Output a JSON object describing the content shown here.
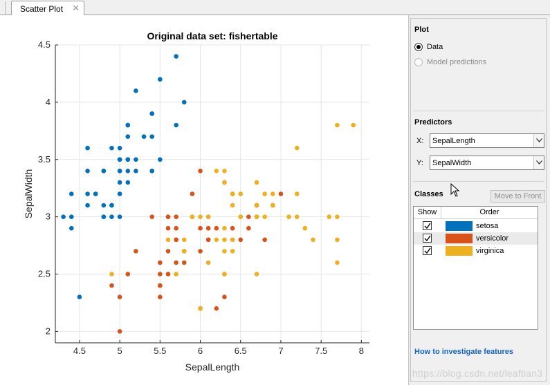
{
  "tabs": [
    {
      "label": "Scatter Plot",
      "close_glyph": "✕"
    }
  ],
  "panel": {
    "plot": {
      "title": "Plot",
      "options": [
        {
          "label": "Data",
          "selected": true,
          "enabled": true
        },
        {
          "label": "Model predictions",
          "selected": false,
          "enabled": false
        }
      ]
    },
    "predictors": {
      "title": "Predictors",
      "x_label": "X:",
      "x_value": "SepalLength",
      "y_label": "Y:",
      "y_value": "SepalWidth"
    },
    "classes": {
      "title": "Classes",
      "move_button": "Move to Front",
      "col_show": "Show",
      "col_order": "Order",
      "rows": [
        {
          "name": "setosa",
          "color": "#0072bd",
          "checked": true
        },
        {
          "name": "versicolor",
          "color": "#d95319",
          "checked": true
        },
        {
          "name": "virginica",
          "color": "#edb120",
          "checked": true
        }
      ]
    },
    "help_link": "How to investigate features"
  },
  "watermark": "https://blog.csdn.net/leaftian3",
  "chart_data": {
    "type": "scatter",
    "title": "Original data set: fishertable",
    "xlabel": "SepalLength",
    "ylabel": "SepalWidth",
    "xlim": [
      4.2,
      8.1
    ],
    "ylim": [
      1.9,
      4.5
    ],
    "xticks": [
      4.5,
      5,
      5.5,
      6,
      6.5,
      7,
      7.5,
      8
    ],
    "yticks": [
      2,
      2.5,
      3,
      3.5,
      4,
      4.5
    ],
    "xtick_labels": [
      "4.5",
      "5",
      "5.5",
      "6",
      "6.5",
      "7",
      "7.5",
      "8"
    ],
    "ytick_labels": [
      "2",
      "2.5",
      "3",
      "3.5",
      "4",
      "4.5"
    ],
    "grid": true,
    "series": [
      {
        "name": "setosa",
        "color": "#0072bd",
        "points": [
          [
            5.1,
            3.5
          ],
          [
            4.9,
            3.0
          ],
          [
            4.7,
            3.2
          ],
          [
            4.6,
            3.1
          ],
          [
            5.0,
            3.6
          ],
          [
            5.4,
            3.9
          ],
          [
            4.6,
            3.4
          ],
          [
            5.0,
            3.4
          ],
          [
            4.4,
            2.9
          ],
          [
            4.9,
            3.1
          ],
          [
            5.4,
            3.7
          ],
          [
            4.8,
            3.4
          ],
          [
            4.8,
            3.0
          ],
          [
            4.3,
            3.0
          ],
          [
            5.8,
            4.0
          ],
          [
            5.7,
            4.4
          ],
          [
            5.4,
            3.9
          ],
          [
            5.1,
            3.5
          ],
          [
            5.7,
            3.8
          ],
          [
            5.1,
            3.8
          ],
          [
            5.4,
            3.4
          ],
          [
            5.1,
            3.7
          ],
          [
            4.6,
            3.6
          ],
          [
            5.1,
            3.3
          ],
          [
            4.8,
            3.4
          ],
          [
            5.0,
            3.0
          ],
          [
            5.0,
            3.4
          ],
          [
            5.2,
            3.5
          ],
          [
            5.2,
            3.4
          ],
          [
            4.7,
            3.2
          ],
          [
            4.8,
            3.1
          ],
          [
            5.4,
            3.4
          ],
          [
            5.2,
            4.1
          ],
          [
            5.5,
            4.2
          ],
          [
            4.9,
            3.1
          ],
          [
            5.0,
            3.2
          ],
          [
            5.5,
            3.5
          ],
          [
            4.9,
            3.6
          ],
          [
            4.4,
            3.0
          ],
          [
            5.1,
            3.4
          ],
          [
            5.0,
            3.5
          ],
          [
            4.5,
            2.3
          ],
          [
            4.4,
            3.2
          ],
          [
            5.0,
            3.5
          ],
          [
            5.1,
            3.8
          ],
          [
            4.8,
            3.0
          ],
          [
            5.1,
            3.8
          ],
          [
            4.6,
            3.2
          ],
          [
            5.3,
            3.7
          ],
          [
            5.0,
            3.3
          ]
        ]
      },
      {
        "name": "versicolor",
        "color": "#d95319",
        "points": [
          [
            7.0,
            3.2
          ],
          [
            6.4,
            3.2
          ],
          [
            6.9,
            3.1
          ],
          [
            5.5,
            2.3
          ],
          [
            6.5,
            2.8
          ],
          [
            5.7,
            2.8
          ],
          [
            6.3,
            3.3
          ],
          [
            4.9,
            2.4
          ],
          [
            6.6,
            2.9
          ],
          [
            5.2,
            2.7
          ],
          [
            5.0,
            2.0
          ],
          [
            5.9,
            3.0
          ],
          [
            6.0,
            2.2
          ],
          [
            6.1,
            2.9
          ],
          [
            5.6,
            2.9
          ],
          [
            6.7,
            3.1
          ],
          [
            5.6,
            3.0
          ],
          [
            5.8,
            2.7
          ],
          [
            6.2,
            2.2
          ],
          [
            5.6,
            2.5
          ],
          [
            5.9,
            3.2
          ],
          [
            6.1,
            2.8
          ],
          [
            6.3,
            2.5
          ],
          [
            6.1,
            2.8
          ],
          [
            6.4,
            2.9
          ],
          [
            6.6,
            3.0
          ],
          [
            6.8,
            2.8
          ],
          [
            6.7,
            3.0
          ],
          [
            6.0,
            2.9
          ],
          [
            5.7,
            2.6
          ],
          [
            5.5,
            2.4
          ],
          [
            5.5,
            2.4
          ],
          [
            5.8,
            2.7
          ],
          [
            6.0,
            2.7
          ],
          [
            5.4,
            3.0
          ],
          [
            6.0,
            3.4
          ],
          [
            6.7,
            3.1
          ],
          [
            6.3,
            2.3
          ],
          [
            5.6,
            3.0
          ],
          [
            5.5,
            2.5
          ],
          [
            5.5,
            2.6
          ],
          [
            6.1,
            3.0
          ],
          [
            5.8,
            2.6
          ],
          [
            5.0,
            2.3
          ],
          [
            5.6,
            2.7
          ],
          [
            5.7,
            3.0
          ],
          [
            5.7,
            2.9
          ],
          [
            6.2,
            2.9
          ],
          [
            5.1,
            2.5
          ],
          [
            5.7,
            2.8
          ]
        ]
      },
      {
        "name": "virginica",
        "color": "#edb120",
        "points": [
          [
            6.3,
            3.3
          ],
          [
            5.8,
            2.7
          ],
          [
            7.1,
            3.0
          ],
          [
            6.3,
            2.9
          ],
          [
            6.5,
            3.0
          ],
          [
            7.6,
            3.0
          ],
          [
            4.9,
            2.5
          ],
          [
            7.3,
            2.9
          ],
          [
            6.7,
            2.5
          ],
          [
            7.2,
            3.6
          ],
          [
            6.5,
            3.2
          ],
          [
            6.4,
            2.7
          ],
          [
            6.8,
            3.0
          ],
          [
            5.7,
            2.5
          ],
          [
            5.8,
            2.8
          ],
          [
            6.4,
            3.2
          ],
          [
            6.5,
            3.0
          ],
          [
            7.7,
            3.8
          ],
          [
            7.7,
            2.6
          ],
          [
            6.0,
            2.2
          ],
          [
            6.9,
            3.2
          ],
          [
            5.6,
            2.8
          ],
          [
            7.7,
            2.8
          ],
          [
            6.3,
            2.7
          ],
          [
            6.7,
            3.3
          ],
          [
            7.2,
            3.2
          ],
          [
            6.2,
            2.8
          ],
          [
            6.1,
            3.0
          ],
          [
            6.4,
            2.8
          ],
          [
            7.2,
            3.0
          ],
          [
            7.4,
            2.8
          ],
          [
            7.9,
            3.8
          ],
          [
            6.4,
            2.8
          ],
          [
            6.3,
            2.8
          ],
          [
            6.1,
            2.6
          ],
          [
            7.7,
            3.0
          ],
          [
            6.3,
            3.4
          ],
          [
            6.4,
            3.1
          ],
          [
            6.0,
            3.0
          ],
          [
            6.9,
            3.1
          ],
          [
            6.7,
            3.1
          ],
          [
            6.9,
            3.1
          ],
          [
            5.8,
            2.7
          ],
          [
            6.8,
            3.2
          ],
          [
            6.7,
            3.3
          ],
          [
            6.7,
            3.0
          ],
          [
            6.3,
            2.5
          ],
          [
            6.5,
            3.0
          ],
          [
            6.2,
            3.4
          ],
          [
            5.9,
            3.0
          ]
        ]
      }
    ]
  }
}
